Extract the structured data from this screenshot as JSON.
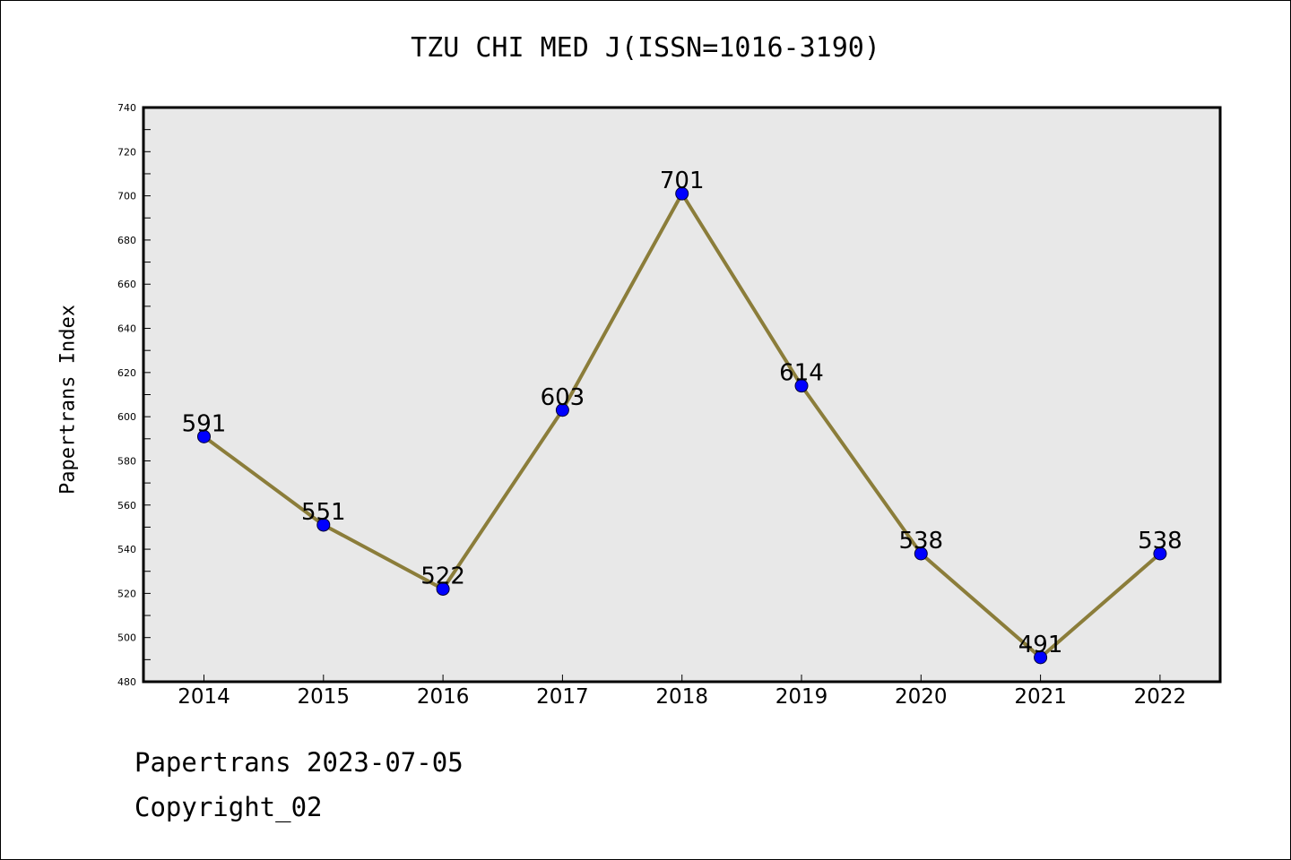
{
  "chart_data": {
    "type": "line",
    "title": "TZU CHI MED J(ISSN=1016-3190)",
    "xlabel": "",
    "ylabel": "Papertrans Index",
    "x": [
      "2014",
      "2015",
      "2016",
      "2017",
      "2018",
      "2019",
      "2020",
      "2021",
      "2022"
    ],
    "series": [
      {
        "values": [
          591,
          551,
          522,
          603,
          701,
          614,
          538,
          491,
          538
        ]
      }
    ],
    "ylim": [
      480,
      740
    ],
    "yticks": [
      480,
      500,
      520,
      540,
      560,
      580,
      600,
      620,
      640,
      660,
      680,
      700,
      720,
      740
    ],
    "grid": false,
    "legend": "none",
    "colors": {
      "line": "#8b7d3a",
      "marker": "#0000ff",
      "plot_background": "#e8e8e8"
    }
  },
  "footer": {
    "line1": "Papertrans 2023-07-05",
    "line2": "Copyright_02"
  }
}
